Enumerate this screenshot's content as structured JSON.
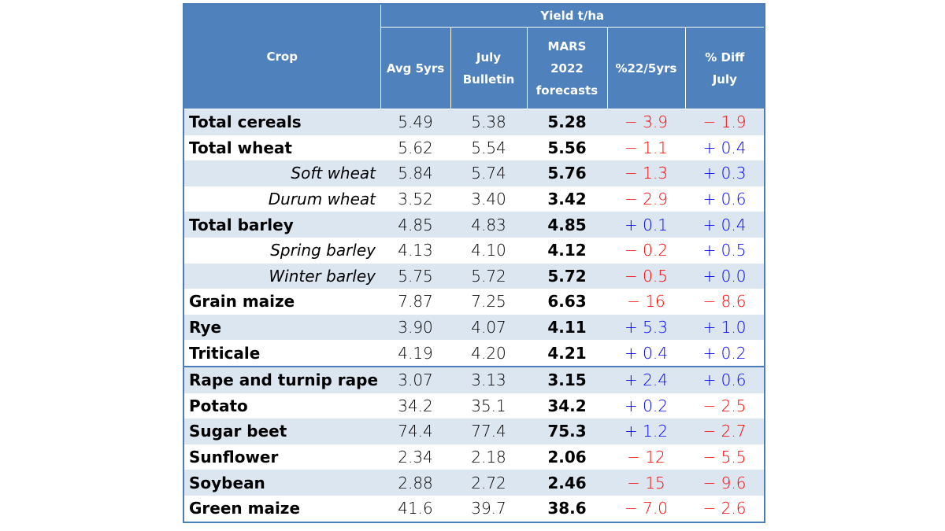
{
  "table": {
    "header": {
      "crop": "Crop",
      "yield_group": "Yield t/ha",
      "avg5": "Avg 5yrs",
      "july_lines": [
        "July",
        "Bulletin"
      ],
      "mars_lines": [
        "MARS",
        "2022",
        "forecasts"
      ],
      "pct5": "%22/5yrs",
      "pctjuly_lines": [
        "% Diff",
        "July"
      ]
    },
    "rows": [
      {
        "crop": "Total cereals",
        "avg5": "5.49",
        "july": "5.38",
        "mars": "5.28",
        "pct5": "− 3.9",
        "pctjuly": "− 1.9"
      },
      {
        "crop": "Total wheat",
        "avg5": "5.62",
        "july": "5.54",
        "mars": "5.56",
        "pct5": "− 1.1",
        "pctjuly": "+ 0.4"
      },
      {
        "crop": "Soft wheat",
        "avg5": "5.84",
        "july": "5.74",
        "mars": "5.76",
        "pct5": "− 1.3",
        "pctjuly": "+ 0.3"
      },
      {
        "crop": "Durum wheat",
        "avg5": "3.52",
        "july": "3.40",
        "mars": "3.42",
        "pct5": "− 2.9",
        "pctjuly": "+ 0.6"
      },
      {
        "crop": "Total barley",
        "avg5": "4.85",
        "july": "4.83",
        "mars": "4.85",
        "pct5": "+ 0.1",
        "pctjuly": "+ 0.4"
      },
      {
        "crop": "Spring barley",
        "avg5": "4.13",
        "july": "4.10",
        "mars": "4.12",
        "pct5": "− 0.2",
        "pctjuly": "+ 0.5"
      },
      {
        "crop": "Winter barley",
        "avg5": "5.75",
        "july": "5.72",
        "mars": "5.72",
        "pct5": "− 0.5",
        "pctjuly": "+ 0.0"
      },
      {
        "crop": "Grain maize",
        "avg5": "7.87",
        "july": "7.25",
        "mars": "6.63",
        "pct5": "− 16",
        "pctjuly": "− 8.6"
      },
      {
        "crop": "Rye",
        "avg5": "3.90",
        "july": "4.07",
        "mars": "4.11",
        "pct5": "+ 5.3",
        "pctjuly": "+ 1.0"
      },
      {
        "crop": "Triticale",
        "avg5": "4.19",
        "july": "4.20",
        "mars": "4.21",
        "pct5": "+ 0.4",
        "pctjuly": "+ 0.2"
      },
      {
        "crop": "Rape and turnip rape",
        "avg5": "3.07",
        "july": "3.13",
        "mars": "3.15",
        "pct5": "+ 2.4",
        "pctjuly": "+ 0.6"
      },
      {
        "crop": "Potato",
        "avg5": "34.2",
        "july": "35.1",
        "mars": "34.2",
        "pct5": "+ 0.2",
        "pctjuly": "− 2.5"
      },
      {
        "crop": "Sugar beet",
        "avg5": "74.4",
        "july": "77.4",
        "mars": "75.3",
        "pct5": "+ 1.2",
        "pctjuly": "− 2.7"
      },
      {
        "crop": "Sunflower",
        "avg5": "2.34",
        "july": "2.18",
        "mars": "2.06",
        "pct5": "− 12",
        "pctjuly": "− 5.5"
      },
      {
        "crop": "Soybean",
        "avg5": "2.88",
        "july": "2.72",
        "mars": "2.46",
        "pct5": "− 15",
        "pctjuly": "− 9.6"
      },
      {
        "crop": "Green maize",
        "avg5": "41.6",
        "july": "39.7",
        "mars": "38.6",
        "pct5": "− 7.0",
        "pctjuly": "− 2.6"
      }
    ]
  },
  "colors": {
    "header_bg": "#4f81bd",
    "band_bg": "#dce6f1",
    "negative": "#ff0000",
    "positive": "#0000ff"
  }
}
